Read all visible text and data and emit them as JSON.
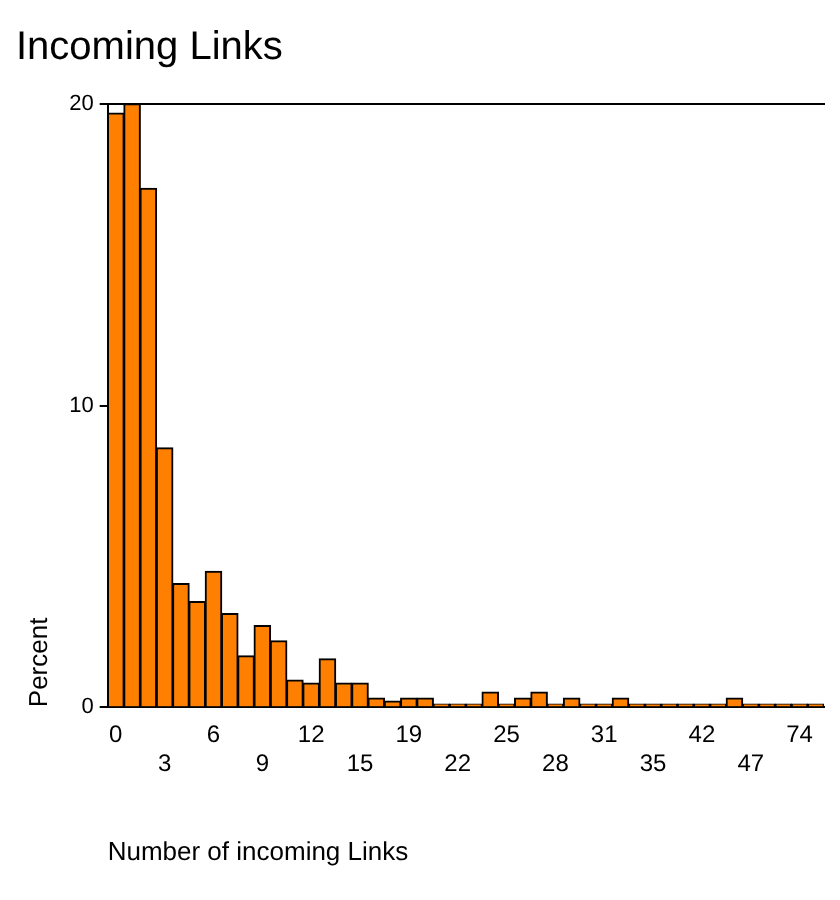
{
  "chart_data": {
    "type": "bar",
    "title": "Incoming Links",
    "xlabel": "Number of incoming Links",
    "ylabel": "Percent",
    "categories": [
      "0",
      null,
      null,
      "3",
      null,
      null,
      "6",
      null,
      null,
      "9",
      null,
      null,
      "12",
      null,
      null,
      "15",
      null,
      null,
      "19",
      null,
      null,
      "22",
      null,
      null,
      "25",
      null,
      null,
      "28",
      null,
      null,
      "31",
      null,
      null,
      "35",
      null,
      null,
      "42",
      null,
      null,
      "47",
      null,
      null,
      "74",
      null
    ],
    "values": [
      19.7,
      20.0,
      17.2,
      8.6,
      4.1,
      3.5,
      4.5,
      3.1,
      1.7,
      2.7,
      2.2,
      0.9,
      0.8,
      1.6,
      0.8,
      0.8,
      0.3,
      0.2,
      0.3,
      0.3,
      0.1,
      0.1,
      0.1,
      0.5,
      0.1,
      0.3,
      0.5,
      0.1,
      0.3,
      0.1,
      0.1,
      0.3,
      0.1,
      0.1,
      0.1,
      0.1,
      0.1,
      0.1,
      0.3,
      0.1,
      0.1,
      0.1,
      0.1,
      0.1
    ],
    "color": "#ff8000",
    "ylim": [
      0,
      20
    ],
    "yticks": [
      0,
      10,
      20
    ],
    "grid": false,
    "legend": false
  }
}
